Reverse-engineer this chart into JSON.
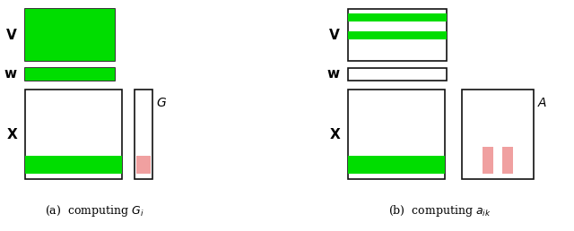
{
  "green": "#00dd00",
  "pink": "#f0a0a0",
  "white": "#ffffff",
  "black": "#111111",
  "bg": "#ffffff",
  "caption_a": "(a)  computing $G_i$",
  "caption_b": "(b)  computing $a_{ik}$",
  "label_V": "$\\mathbf{V}$",
  "label_w": "$\\mathbf{w}$",
  "label_X": "$\\mathbf{X}$",
  "label_G": "$G$",
  "label_A": "$A$"
}
